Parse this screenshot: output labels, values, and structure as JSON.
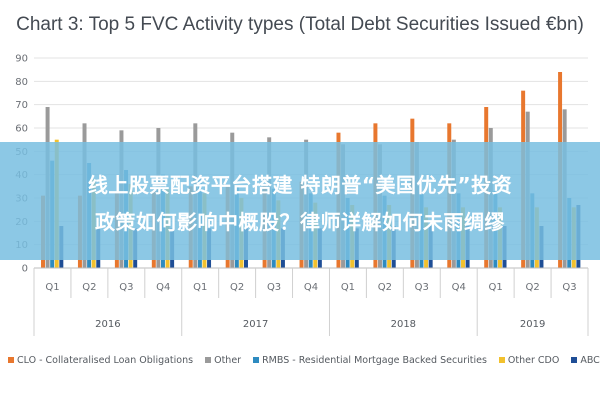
{
  "chart_data": {
    "type": "bar",
    "title": "Chart 3: Top 5 FVC Activity types (Total Debt Securities Issued €bn)",
    "xlabel": "",
    "ylabel": "",
    "ylim": [
      0,
      90
    ],
    "yticks": [
      0,
      10,
      20,
      30,
      40,
      50,
      60,
      70,
      80,
      90
    ],
    "grid": true,
    "legend_position": "bottom",
    "categories": [
      "Q1",
      "Q2",
      "Q3",
      "Q4",
      "Q1",
      "Q2",
      "Q3",
      "Q4",
      "Q1",
      "Q2",
      "Q3",
      "Q4",
      "Q1",
      "Q2",
      "Q3"
    ],
    "groups": [
      {
        "label": "2016",
        "start": 0,
        "end": 3
      },
      {
        "label": "2017",
        "start": 4,
        "end": 7
      },
      {
        "label": "2018",
        "start": 8,
        "end": 11
      },
      {
        "label": "2019",
        "start": 12,
        "end": 14
      }
    ],
    "series": [
      {
        "name": "CLO - Collateralised Loan Obligations",
        "color": "#e8772e",
        "values": [
          31,
          31,
          32,
          33,
          35,
          35,
          36,
          37,
          58,
          62,
          64,
          62,
          69,
          76,
          84
        ]
      },
      {
        "name": "Other",
        "color": "#9a9a9a",
        "values": [
          69,
          62,
          59,
          60,
          62,
          58,
          56,
          55,
          53,
          53,
          54,
          55,
          60,
          67,
          68
        ]
      },
      {
        "name": "RMBS - Residential Mortgage Backed Securities",
        "color": "#2e8bc0",
        "values": [
          46,
          45,
          42,
          40,
          38,
          35,
          34,
          32,
          30,
          31,
          32,
          32,
          33,
          32,
          30
        ]
      },
      {
        "name": "Other CDO",
        "color": "#f2c12e",
        "values": [
          55,
          38,
          36,
          34,
          32,
          30,
          29,
          28,
          27,
          27,
          26,
          26,
          26,
          26,
          26
        ]
      },
      {
        "name": "ABCP",
        "color": "#1f4e96",
        "values": [
          18,
          18,
          17,
          17,
          17,
          17,
          17,
          17,
          17,
          18,
          18,
          18,
          18,
          18,
          27
        ]
      }
    ]
  },
  "overlay": {
    "line1": "线上股票配资平台搭建 特朗普“美国优先”投资",
    "line2": "政策如何影响中概股？律师详解如何未雨绸缪"
  }
}
